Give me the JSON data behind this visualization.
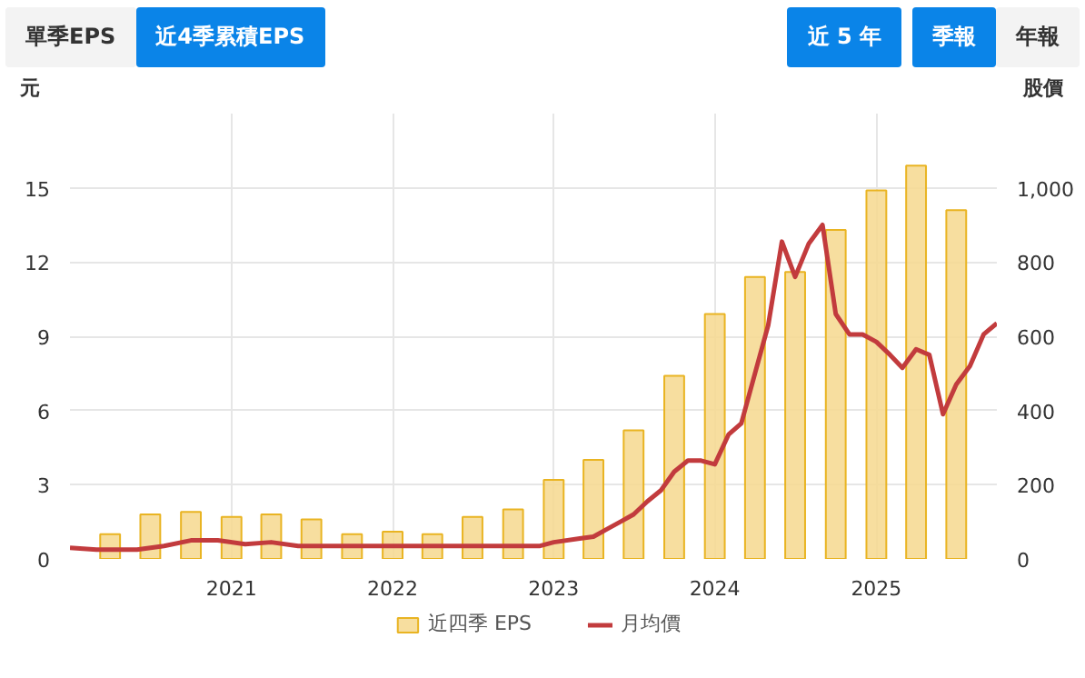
{
  "chart_data": {
    "type": "bar",
    "annotations": [
      "單季EPS",
      "近4季累積EPS",
      "近 5 年",
      "季報",
      "年報"
    ],
    "ylabel": "元",
    "y2label": "股價",
    "x": [
      "2020-04-01",
      "2020-07-01",
      "2020-10-01",
      "2021-01-01",
      "2021-04-01",
      "2021-07-01",
      "2021-10-01",
      "2022-01-01",
      "2022-04-01",
      "2022-07-01",
      "2022-10-01",
      "2023-01-01",
      "2023-04-01",
      "2023-07-01",
      "2023-10-01",
      "2024-01-01",
      "2024-04-01",
      "2024-07-01",
      "2024-10-01",
      "2025-01-01",
      "2025-04-01",
      "2025-07-01"
    ],
    "series": [
      {
        "name": "近四季 EPS",
        "color": "#f6d88e",
        "values": [
          1.0,
          1.8,
          1.9,
          1.7,
          1.8,
          1.6,
          1.0,
          1.1,
          1.0,
          1.7,
          2.0,
          3.2,
          4.0,
          5.2,
          7.4,
          9.9,
          11.4,
          11.6,
          13.3,
          14.9,
          15.9,
          14.1
        ]
      },
      {
        "name": "月均價",
        "type": "line",
        "axis": "y2",
        "color": "#c23b3d",
        "x": [
          "2020-01",
          "2020-03",
          "2020-06",
          "2020-08",
          "2020-10",
          "2020-12",
          "2021-02",
          "2021-04",
          "2021-06",
          "2021-08",
          "2021-10",
          "2022-01",
          "2022-04",
          "2022-07",
          "2022-10",
          "2022-12",
          "2023-01",
          "2023-03",
          "2023-04",
          "2023-05",
          "2023-06",
          "2023-07",
          "2023-08",
          "2023-09",
          "2023-10",
          "2023-11",
          "2023-12",
          "2024-01",
          "2024-02",
          "2024-03",
          "2024-04",
          "2024-05",
          "2024-06",
          "2024-07",
          "2024-08",
          "2024-09",
          "2024-10",
          "2024-11",
          "2024-12",
          "2025-01",
          "2025-02",
          "2025-03",
          "2025-04",
          "2025-05",
          "2025-06",
          "2025-07",
          "2025-08",
          "2025-09",
          "2025-10"
        ],
        "values": [
          30,
          25,
          25,
          35,
          50,
          50,
          40,
          45,
          35,
          35,
          35,
          35,
          35,
          35,
          35,
          35,
          45,
          55,
          60,
          80,
          100,
          120,
          155,
          185,
          235,
          265,
          265,
          255,
          335,
          365,
          500,
          630,
          855,
          760,
          850,
          900,
          660,
          605,
          605,
          585,
          550,
          515,
          565,
          550,
          390,
          470,
          520,
          605,
          635
        ]
      }
    ],
    "xlim": [
      "2020-01-01",
      "2025-10-01"
    ],
    "xticks": [
      "2021",
      "2022",
      "2023",
      "2024",
      "2025"
    ],
    "ylim": [
      0,
      18
    ],
    "yticks": [
      0,
      3,
      6,
      9,
      12,
      15
    ],
    "y2lim": [
      0,
      1200
    ],
    "y2ticks": [
      0,
      200,
      400,
      600,
      800,
      {
        "value": 1000,
        "label": "1,000"
      }
    ],
    "grid": true,
    "legend": "bottom"
  }
}
